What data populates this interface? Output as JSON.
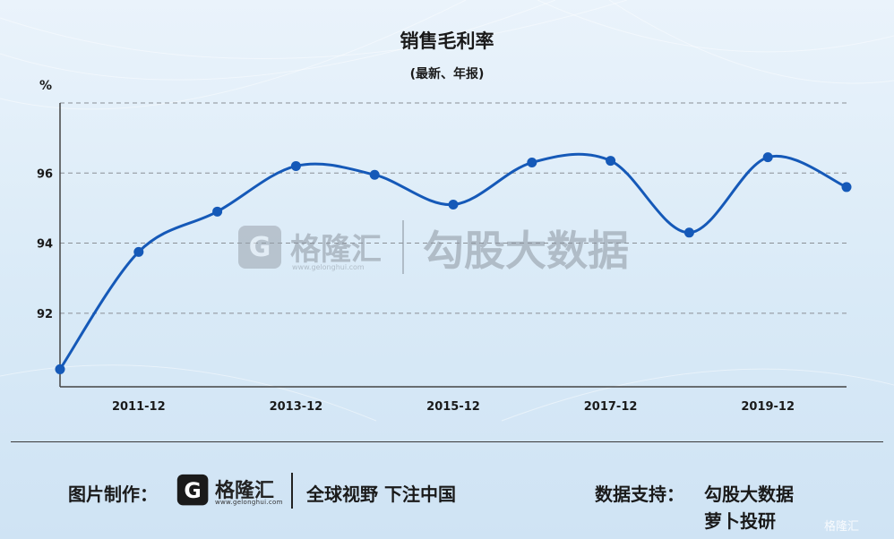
{
  "chart_data": {
    "type": "line",
    "title": "销售毛利率",
    "subtitle": "(最新、年报)",
    "unit": "%",
    "x": [
      "2010-12",
      "2011-12",
      "2012-12",
      "2013-12",
      "2014-12",
      "2015-12",
      "2016-12",
      "2017-12",
      "2018-12",
      "2019-12",
      "2020-06"
    ],
    "x_tick_labels": [
      "2011-12",
      "2013-12",
      "2015-12",
      "2017-12",
      "2019-12"
    ],
    "y": [
      90.4,
      93.75,
      94.9,
      96.2,
      95.95,
      95.1,
      96.3,
      96.35,
      94.3,
      96.45,
      95.6
    ],
    "y_ticks": [
      92,
      94,
      96
    ],
    "y_tick_labels": [
      "92",
      "94",
      "96"
    ],
    "ylim": [
      89.9,
      98
    ],
    "grid": true,
    "line_color": "#1559b8"
  },
  "watermark": {
    "brand": "格隆汇",
    "url": "www.gelonghui.com",
    "data_source": "勾股大数据"
  },
  "footer": {
    "made_by_label": "图片制作：",
    "logo_name": "格隆汇",
    "logo_url": "www.gelonghui.com",
    "slogan": "全球视野 下注中国",
    "support_label": "数据支持：",
    "support_1": "勾股大数据",
    "support_2": "萝卜投研",
    "corner_logo": "格隆汇"
  }
}
